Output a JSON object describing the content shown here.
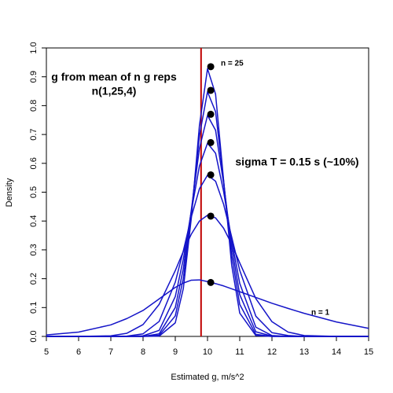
{
  "chart_data": {
    "type": "line",
    "xlabel": "Estimated g, m/s^2",
    "ylabel": "Density",
    "annotations": [
      "g from mean of n g reps",
      "n(1,25,4)",
      "sigma T = 0.15 s (~10%)",
      "n = 25",
      "n = 1"
    ],
    "x": [
      5,
      6,
      7,
      7.5,
      8,
      8.5,
      9,
      9.25,
      9.5,
      9.75,
      10,
      10.25,
      10.5,
      10.75,
      11,
      11.5,
      12,
      12.5,
      13,
      14,
      15
    ],
    "series": [
      {
        "color": "#1414c8",
        "values": [
          0.005,
          0.015,
          0.04,
          0.062,
          0.09,
          0.13,
          0.17,
          0.185,
          0.195,
          0.196,
          0.19,
          0.183,
          0.175,
          0.165,
          0.155,
          0.135,
          0.115,
          0.097,
          0.08,
          0.05,
          0.028
        ]
      },
      {
        "color": "#1414c8",
        "values": [
          0,
          0,
          0.002,
          0.011,
          0.041,
          0.111,
          0.228,
          0.295,
          0.355,
          0.4,
          0.42,
          0.411,
          0.375,
          0.32,
          0.255,
          0.131,
          0.051,
          0.015,
          0.003,
          0,
          0
        ]
      },
      {
        "color": "#1414c8",
        "values": [
          0,
          0,
          0,
          0.001,
          0.009,
          0.052,
          0.188,
          0.297,
          0.415,
          0.512,
          0.559,
          0.538,
          0.458,
          0.345,
          0.229,
          0.07,
          0.013,
          0.003,
          0,
          0,
          0
        ]
      },
      {
        "color": "#1414c8",
        "values": [
          0,
          0,
          0,
          0,
          0.002,
          0.021,
          0.138,
          0.268,
          0.435,
          0.591,
          0.67,
          0.635,
          0.502,
          0.333,
          0.184,
          0.032,
          0.003,
          0,
          0,
          0,
          0
        ]
      },
      {
        "color": "#1414c8",
        "values": [
          0,
          0,
          0,
          0,
          0,
          0.009,
          0.1,
          0.235,
          0.44,
          0.652,
          0.766,
          0.715,
          0.53,
          0.311,
          0.145,
          0.016,
          0.001,
          0,
          0,
          0,
          0
        ]
      },
      {
        "color": "#1414c8",
        "values": [
          0,
          0,
          0,
          0,
          0,
          0.004,
          0.071,
          0.201,
          0.43,
          0.696,
          0.848,
          0.779,
          0.539,
          0.281,
          0.111,
          0.007,
          0,
          0,
          0,
          0,
          0
        ]
      },
      {
        "color": "#1414c8",
        "values": [
          0,
          0,
          0,
          0,
          0,
          0.001,
          0.047,
          0.166,
          0.412,
          0.732,
          0.928,
          0.84,
          0.541,
          0.247,
          0.081,
          0.003,
          0,
          0,
          0,
          0,
          0
        ]
      }
    ],
    "points": {
      "x": [
        10.1,
        10.1,
        10.1,
        10.1,
        10.1,
        10.1,
        10.1
      ],
      "y": [
        0.187,
        0.417,
        0.56,
        0.672,
        0.77,
        0.853,
        0.935
      ],
      "color": "#000000"
    },
    "vline": {
      "x": 9.8,
      "color": "#c00000"
    },
    "xlim": [
      5,
      15
    ],
    "ylim": [
      0,
      1
    ],
    "xticks": [
      5,
      6,
      7,
      8,
      9,
      10,
      11,
      12,
      13,
      14,
      15
    ],
    "yticks": [
      {
        "value": 0,
        "label": "0.0"
      },
      0.1,
      0.2,
      0.3,
      0.4,
      0.5,
      0.6,
      0.7,
      0.8,
      0.9,
      {
        "value": 1,
        "label": "1.0"
      }
    ]
  }
}
